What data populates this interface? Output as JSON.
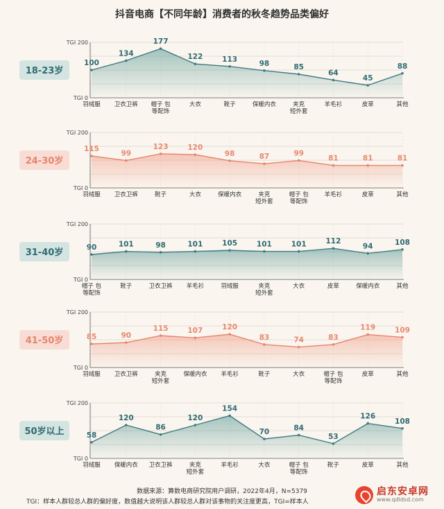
{
  "title": "抖音电商【不同年龄】消费者的秋冬趋势品类偏好",
  "footer": {
    "source": "数据来源：算数电商研究院用户调研，2022年4月，N=5379",
    "note": "TGI：样本人群较总人群的偏好度，数值越大说明该人群较总人群对该事物的关注度更高，TGI=样本人"
  },
  "watermark": {
    "name": "启东安卓网",
    "url": "www.qdldsd.com"
  },
  "colors": {
    "teal_line": "#3f7a82",
    "teal_text": "#2f6a72",
    "teal_fill": "#5f9a96",
    "teal_badge_bg": "#d3e4e1",
    "orange_line": "#e8836a",
    "orange_text": "#e8886e",
    "orange_fill": "#f0a08c",
    "orange_badge_bg": "#f7ddd5",
    "axis": "#555555",
    "grid": "#d9d6cf"
  },
  "chart_data": [
    {
      "type": "area",
      "group": "18-23岁",
      "theme": "teal",
      "categories": [
        "羽绒服",
        "卫衣卫裤",
        "帽子 包\n等配饰",
        "大衣",
        "靴子",
        "保暖内衣",
        "夹克\n短外套",
        "羊毛衫",
        "皮草",
        "其他"
      ],
      "values": [
        100,
        134,
        177,
        122,
        113,
        98,
        85,
        64,
        45,
        88
      ],
      "ylim": [
        0,
        200
      ],
      "ytick_labels": [
        "TGI 0",
        "TGI 200"
      ]
    },
    {
      "type": "area",
      "group": "24-30岁",
      "theme": "orange",
      "categories": [
        "羽绒服",
        "卫衣卫裤",
        "靴子",
        "大衣",
        "保暖内衣",
        "夹克\n短外套",
        "帽子 包\n等配饰",
        "羊毛衫",
        "皮草",
        "其他"
      ],
      "values": [
        115,
        99,
        123,
        120,
        98,
        87,
        99,
        81,
        81,
        81
      ],
      "ylim": [
        0,
        200
      ],
      "ytick_labels": [
        "TGI 0",
        "TGI 200"
      ]
    },
    {
      "type": "area",
      "group": "31-40岁",
      "theme": "teal",
      "categories": [
        "帽子 包\n等配饰",
        "靴子",
        "卫衣卫裤",
        "羊毛衫",
        "羽绒服",
        "夹克\n短外套",
        "大衣",
        "皮草",
        "保暖内衣",
        "其他"
      ],
      "values": [
        90,
        101,
        98,
        101,
        105,
        101,
        101,
        112,
        94,
        108
      ],
      "ylim": [
        0,
        200
      ],
      "ytick_labels": [
        "TGI 0",
        "TGI 200"
      ]
    },
    {
      "type": "area",
      "group": "41-50岁",
      "theme": "orange",
      "categories": [
        "羽绒服",
        "卫衣卫裤",
        "夹克\n短外套",
        "保暖内衣",
        "羊毛衫",
        "靴子",
        "大衣",
        "帽子 包\n等配饰",
        "皮草",
        "其他"
      ],
      "values": [
        85,
        90,
        115,
        107,
        120,
        83,
        74,
        83,
        119,
        109
      ],
      "ylim": [
        0,
        200
      ],
      "ytick_labels": [
        "TGI 0",
        "TGI 200"
      ]
    },
    {
      "type": "area",
      "group": "50岁以上",
      "theme": "teal",
      "categories": [
        "羽绒服",
        "保暖内衣",
        "卫衣卫裤",
        "夹克\n短外套",
        "羊毛衫",
        "大衣",
        "帽子 包\n等配饰",
        "靴子",
        "皮草",
        "其他"
      ],
      "values": [
        58,
        120,
        86,
        120,
        154,
        70,
        84,
        53,
        126,
        108
      ],
      "ylim": [
        0,
        200
      ],
      "ytick_labels": [
        "TGI 0",
        "TGI 200"
      ]
    }
  ]
}
